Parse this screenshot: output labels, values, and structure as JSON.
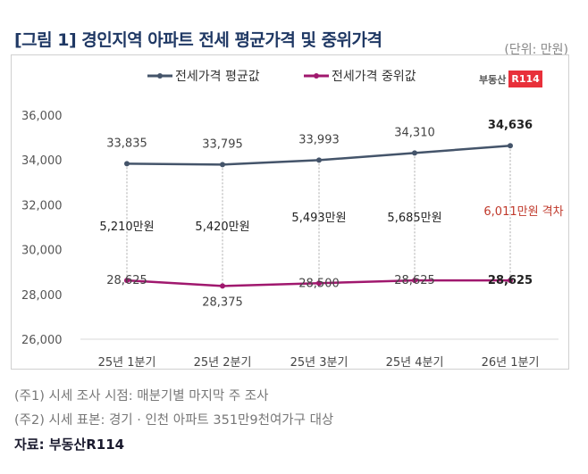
{
  "title": "[그림 1] 경인지역 아파트 전세 평균가격 및 중위가격",
  "unit": "(단위: 만원)",
  "logo": {
    "text": "부동산",
    "badge": "R114"
  },
  "notes": [
    "(주1) 시세 조사 시점: 매분기별 마지막 주 조사",
    "(주2) 시세 표본: 경기 · 인천 아파트 351만9천여가구 대상"
  ],
  "source": "자료: 부동산R114",
  "chart_data": {
    "type": "line",
    "categories": [
      "25년 1분기",
      "25년 2분기",
      "25년 3분기",
      "25년 4분기",
      "26년 1분기"
    ],
    "series": [
      {
        "name": "전세가격 평균값",
        "values": [
          33835,
          33795,
          33993,
          34310,
          34636
        ],
        "labels": [
          "33,835",
          "33,795",
          "33,993",
          "34,310",
          "34,636"
        ],
        "color": "#44546a"
      },
      {
        "name": "전세가격 중위값",
        "values": [
          28625,
          28375,
          28500,
          28625,
          28625
        ],
        "labels": [
          "28,625",
          "28,375",
          "28,500",
          "28,625",
          "28,625"
        ],
        "color": "#a0186e"
      }
    ],
    "gap_labels": [
      "5,210만원",
      "5,420만원",
      "5,493만원",
      "5,685만원",
      "6,011만원  격차"
    ],
    "gap_highlight_color": "#c0392b",
    "yticks": [
      "26,000",
      "28,000",
      "30,000",
      "32,000",
      "34,000",
      "36,000"
    ],
    "ylim": [
      26000,
      36000
    ],
    "grid": false,
    "legend": "top"
  }
}
